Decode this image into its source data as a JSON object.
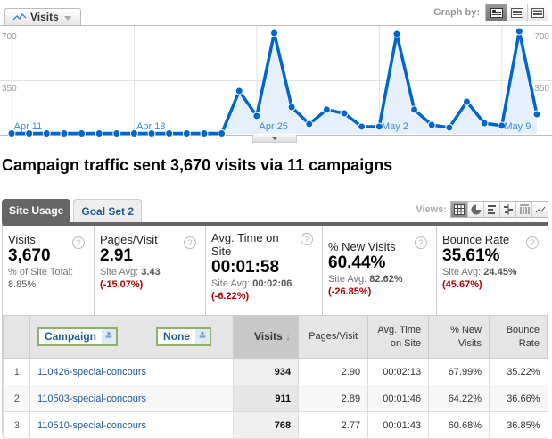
{
  "graph": {
    "metric_tab": "Visits",
    "metric_icon": "line-chart-icon",
    "graph_by_label": "Graph by:",
    "graph_by_options": [
      "day",
      "week",
      "month"
    ],
    "graph_by_selected": "day",
    "y_labels_left": [
      "700",
      "350"
    ],
    "y_labels_right": [
      "700",
      "350"
    ],
    "x_labels": [
      "Apr 11",
      "Apr 18",
      "Apr 25",
      "May 2",
      "May 9"
    ],
    "line_color": "#0066cc",
    "fill_color": "#e5f0fa"
  },
  "chart_data": {
    "type": "area",
    "title": "Visits",
    "xlabel": "",
    "ylabel": "Visits",
    "ylim": [
      0,
      700
    ],
    "grid": true,
    "x": [
      "Apr 10",
      "Apr 11",
      "Apr 12",
      "Apr 13",
      "Apr 14",
      "Apr 15",
      "Apr 16",
      "Apr 17",
      "Apr 18",
      "Apr 19",
      "Apr 20",
      "Apr 21",
      "Apr 22",
      "Apr 23",
      "Apr 24",
      "Apr 25",
      "Apr 26",
      "Apr 27",
      "Apr 28",
      "Apr 29",
      "Apr 30",
      "May 1",
      "May 2",
      "May 3",
      "May 4",
      "May 5",
      "May 6",
      "May 7",
      "May 8",
      "May 9",
      "May 10"
    ],
    "series": [
      {
        "name": "Visits",
        "values": [
          3,
          3,
          3,
          3,
          3,
          3,
          3,
          3,
          3,
          3,
          3,
          3,
          3,
          280,
          117,
          659,
          175,
          64,
          158,
          134,
          47,
          47,
          653,
          158,
          58,
          41,
          210,
          70,
          53,
          671,
          128
        ]
      }
    ],
    "y_ticks": [
      350,
      700
    ],
    "x_tick_labels": [
      "Apr 11",
      "Apr 18",
      "Apr 25",
      "May 2",
      "May 9"
    ]
  },
  "headline": "Campaign traffic sent 3,670 visits via 11 campaigns",
  "tabs": [
    {
      "label": "Site Usage",
      "active": true
    },
    {
      "label": "Goal Set 2",
      "active": false
    }
  ],
  "views": {
    "label": "Views:",
    "options": [
      "table",
      "pie",
      "bar",
      "comparison",
      "pivot",
      "sparkline"
    ],
    "selected": "table"
  },
  "scorecards": [
    {
      "title": "Visits",
      "value": "3,670",
      "sub_label": "% of Site Total:",
      "sub_value": "8.85%",
      "delta": ""
    },
    {
      "title": "Pages/Visit",
      "value": "2.91",
      "sub_label": "Site Avg:",
      "sub_value": "3.43",
      "delta": "(-15.07%)"
    },
    {
      "title": "Avg. Time on Site",
      "value": "00:01:58",
      "sub_label": "Site Avg:",
      "sub_value": "00:02:06",
      "delta": "(-6.22%)"
    },
    {
      "title": "% New Visits",
      "value": "60.44%",
      "sub_label": "Site Avg:",
      "sub_value": "82.62%",
      "delta": "(-26.85%)"
    },
    {
      "title": "Bounce Rate",
      "value": "35.61%",
      "sub_label": "Site Avg:",
      "sub_value": "24.45%",
      "delta": "(45.67%)"
    }
  ],
  "table": {
    "primary_dimension": "Campaign",
    "secondary_dimension": "None",
    "columns": [
      "Visits",
      "Pages/Visit",
      "Avg. Time on Site",
      "% New Visits",
      "Bounce Rate"
    ],
    "sorted_column": "Visits",
    "rows": [
      {
        "index": "1.",
        "campaign": "110426-special-concours",
        "visits": "934",
        "pages_visit": "2.90",
        "avg_time": "00:02:13",
        "new_visits": "67.99%",
        "bounce": "35.22%"
      },
      {
        "index": "2.",
        "campaign": "110503-special-concours",
        "visits": "911",
        "pages_visit": "2.89",
        "avg_time": "00:01:46",
        "new_visits": "64.22%",
        "bounce": "36.66%"
      },
      {
        "index": "3.",
        "campaign": "110510-special-concours",
        "visits": "768",
        "pages_visit": "2.77",
        "avg_time": "00:01:43",
        "new_visits": "60.68%",
        "bounce": "36.85%"
      }
    ]
  }
}
